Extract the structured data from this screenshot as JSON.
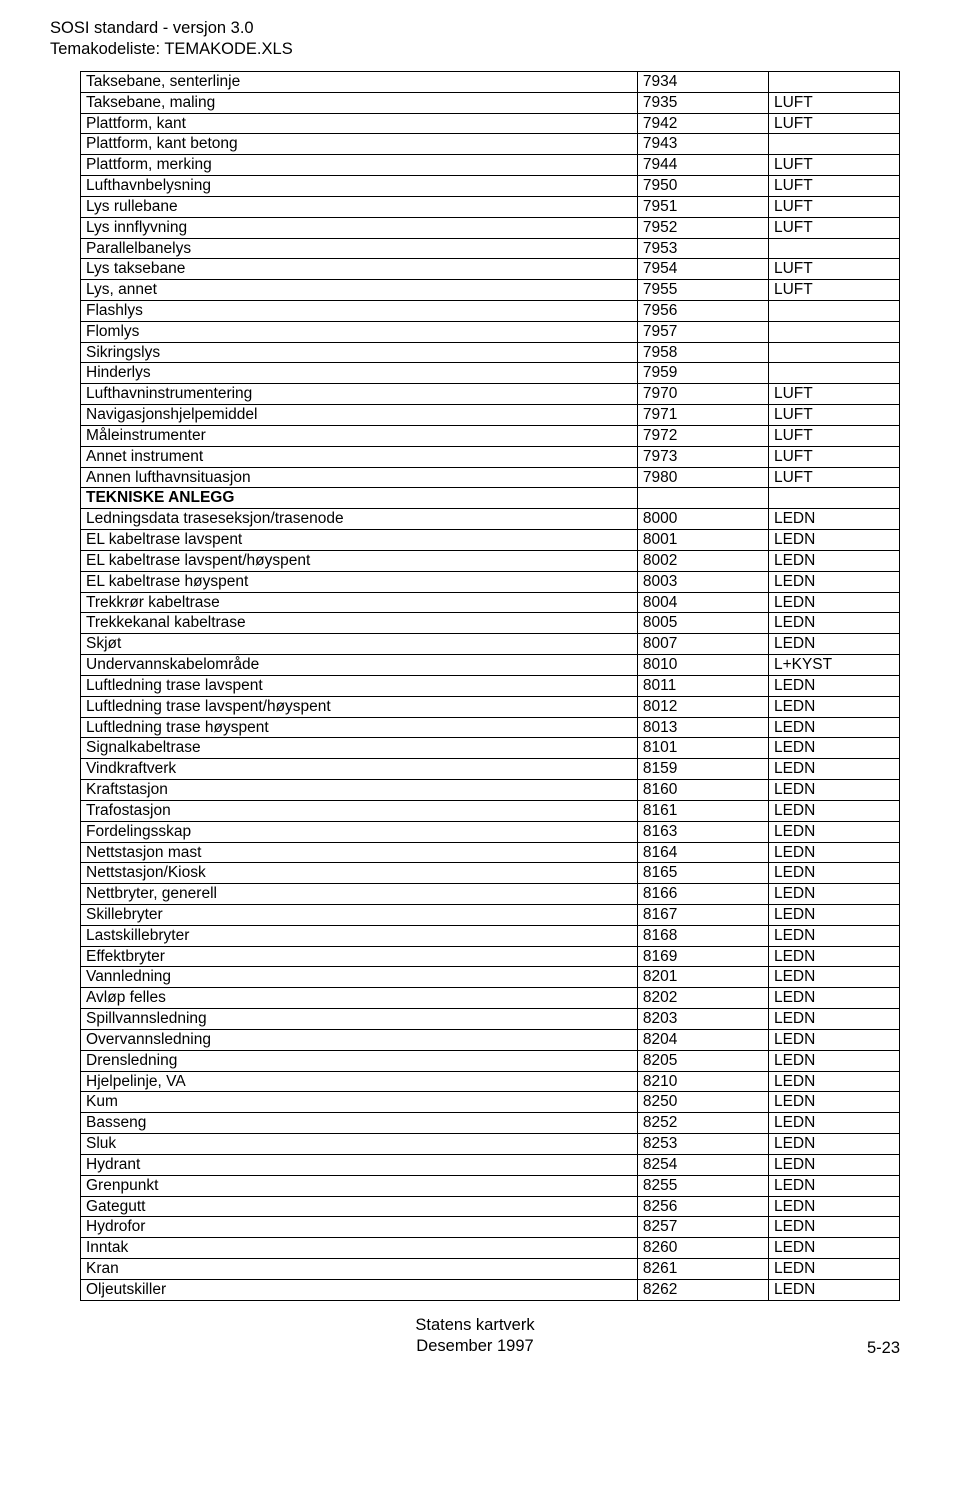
{
  "header": {
    "line1": "SOSI standard - versjon 3.0",
    "line2": "Temakodeliste: TEMAKODE.XLS"
  },
  "table": {
    "rows": [
      {
        "name": "Taksebane, senterlinje",
        "code": "7934",
        "cat": ""
      },
      {
        "name": "Taksebane, maling",
        "code": "7935",
        "cat": "LUFT"
      },
      {
        "name": "Plattform, kant",
        "code": "7942",
        "cat": "LUFT"
      },
      {
        "name": "Plattform, kant betong",
        "code": "7943",
        "cat": ""
      },
      {
        "name": "Plattform, merking",
        "code": "7944",
        "cat": "LUFT"
      },
      {
        "name": "Lufthavnbelysning",
        "code": "7950",
        "cat": "LUFT"
      },
      {
        "name": "Lys rullebane",
        "code": "7951",
        "cat": "LUFT"
      },
      {
        "name": "Lys innflyvning",
        "code": "7952",
        "cat": "LUFT"
      },
      {
        "name": "Parallelbanelys",
        "code": "7953",
        "cat": ""
      },
      {
        "name": "Lys taksebane",
        "code": "7954",
        "cat": "LUFT"
      },
      {
        "name": "Lys, annet",
        "code": "7955",
        "cat": "LUFT"
      },
      {
        "name": "Flashlys",
        "code": "7956",
        "cat": ""
      },
      {
        "name": "Flomlys",
        "code": "7957",
        "cat": ""
      },
      {
        "name": "Sikringslys",
        "code": "7958",
        "cat": ""
      },
      {
        "name": "Hinderlys",
        "code": "7959",
        "cat": ""
      },
      {
        "name": "Lufthavninstrumentering",
        "code": "7970",
        "cat": "LUFT"
      },
      {
        "name": "Navigasjonshjelpemiddel",
        "code": "7971",
        "cat": "LUFT"
      },
      {
        "name": "Måleinstrumenter",
        "code": "7972",
        "cat": "LUFT"
      },
      {
        "name": "Annet instrument",
        "code": "7973",
        "cat": "LUFT"
      },
      {
        "name": "Annen lufthavnsituasjon",
        "code": "7980",
        "cat": "LUFT"
      },
      {
        "name": "TEKNISKE ANLEGG",
        "code": "",
        "cat": "",
        "bold": true
      },
      {
        "name": "Ledningsdata traseseksjon/trasenode",
        "code": "8000",
        "cat": "LEDN"
      },
      {
        "name": "EL kabeltrase lavspent",
        "code": "8001",
        "cat": "LEDN"
      },
      {
        "name": "EL kabeltrase lavspent/høyspent",
        "code": "8002",
        "cat": "LEDN"
      },
      {
        "name": "EL kabeltrase høyspent",
        "code": "8003",
        "cat": "LEDN"
      },
      {
        "name": "Trekkrør kabeltrase",
        "code": "8004",
        "cat": "LEDN"
      },
      {
        "name": "Trekkekanal kabeltrase",
        "code": "8005",
        "cat": "LEDN"
      },
      {
        "name": "Skjøt",
        "code": "8007",
        "cat": "LEDN"
      },
      {
        "name": "Undervannskabelområde",
        "code": "8010",
        "cat": "L+KYST"
      },
      {
        "name": "Luftledning trase lavspent",
        "code": "8011",
        "cat": "LEDN"
      },
      {
        "name": "Luftledning trase lavspent/høyspent",
        "code": "8012",
        "cat": "LEDN"
      },
      {
        "name": "Luftledning trase høyspent",
        "code": "8013",
        "cat": "LEDN"
      },
      {
        "name": "Signalkabeltrase",
        "code": "8101",
        "cat": "LEDN"
      },
      {
        "name": "Vindkraftverk",
        "code": "8159",
        "cat": "LEDN"
      },
      {
        "name": "Kraftstasjon",
        "code": "8160",
        "cat": "LEDN"
      },
      {
        "name": "Trafostasjon",
        "code": "8161",
        "cat": "LEDN"
      },
      {
        "name": "Fordelingsskap",
        "code": "8163",
        "cat": "LEDN"
      },
      {
        "name": "Nettstasjon mast",
        "code": "8164",
        "cat": "LEDN"
      },
      {
        "name": "Nettstasjon/Kiosk",
        "code": "8165",
        "cat": "LEDN"
      },
      {
        "name": "Nettbryter, generell",
        "code": "8166",
        "cat": "LEDN"
      },
      {
        "name": "Skillebryter",
        "code": "8167",
        "cat": "LEDN"
      },
      {
        "name": "Lastskillebryter",
        "code": "8168",
        "cat": "LEDN"
      },
      {
        "name": "Effektbryter",
        "code": "8169",
        "cat": "LEDN"
      },
      {
        "name": "Vannledning",
        "code": "8201",
        "cat": "LEDN"
      },
      {
        "name": "Avløp felles",
        "code": "8202",
        "cat": "LEDN"
      },
      {
        "name": "Spillvannsledning",
        "code": "8203",
        "cat": "LEDN"
      },
      {
        "name": "Overvannsledning",
        "code": "8204",
        "cat": "LEDN"
      },
      {
        "name": "Drensledning",
        "code": "8205",
        "cat": "LEDN"
      },
      {
        "name": "Hjelpelinje, VA",
        "code": "8210",
        "cat": "LEDN"
      },
      {
        "name": "Kum",
        "code": "8250",
        "cat": "LEDN"
      },
      {
        "name": "Basseng",
        "code": "8252",
        "cat": "LEDN"
      },
      {
        "name": "Sluk",
        "code": "8253",
        "cat": "LEDN"
      },
      {
        "name": "Hydrant",
        "code": "8254",
        "cat": "LEDN"
      },
      {
        "name": "Grenpunkt",
        "code": "8255",
        "cat": "LEDN"
      },
      {
        "name": "Gategutt",
        "code": "8256",
        "cat": "LEDN"
      },
      {
        "name": "Hydrofor",
        "code": "8257",
        "cat": "LEDN"
      },
      {
        "name": "Inntak",
        "code": "8260",
        "cat": "LEDN"
      },
      {
        "name": "Kran",
        "code": "8261",
        "cat": "LEDN"
      },
      {
        "name": "Oljeutskiller",
        "code": "8262",
        "cat": "LEDN"
      }
    ]
  },
  "footer": {
    "center1": "Statens kartverk",
    "center2": "Desember 1997",
    "right": "5-23"
  }
}
